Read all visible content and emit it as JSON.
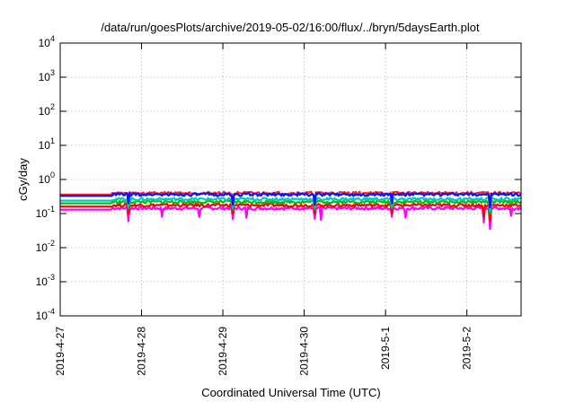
{
  "chart_data": {
    "type": "line",
    "title": "/data/run/goesPlots/archive/2019-05-02/16:00/flux/../bryn/5daysEarth.plot",
    "xlabel": "Coordinated Universal Time (UTC)",
    "ylabel": "cGy/day",
    "yscale": "log",
    "ylim": [
      0.0001,
      10000
    ],
    "xlim": [
      "2019-04-27",
      "2019-05-02T16:00"
    ],
    "grid": true,
    "x_ticks": [
      "2019-4-27",
      "2019-4-28",
      "2019-4-29",
      "2019-4-30",
      "2019-5-1",
      "2019-5-2"
    ],
    "y_ticks": [
      {
        "base": "10",
        "exp": "-4"
      },
      {
        "base": "10",
        "exp": "-3"
      },
      {
        "base": "10",
        "exp": "-2"
      },
      {
        "base": "10",
        "exp": "-1"
      },
      {
        "base": "10",
        "exp": "0"
      },
      {
        "base": "10",
        "exp": "1"
      },
      {
        "base": "10",
        "exp": "2"
      },
      {
        "base": "10",
        "exp": "3"
      },
      {
        "base": "10",
        "exp": "4"
      }
    ],
    "series": [
      {
        "color": "#ff00ff",
        "baseline": 0.13,
        "x_start": "2019-04-27",
        "flat_until": "2019-04-27T15:00",
        "dips": [
          [
            "2019-04-27T15:05",
            0.075
          ],
          [
            "2019-04-27T20:00",
            0.06
          ],
          [
            "2019-04-28T06:00",
            0.08
          ],
          [
            "2019-04-28T17:00",
            0.08
          ],
          [
            "2019-04-29T03:00",
            0.07
          ],
          [
            "2019-04-29T07:00",
            0.075
          ],
          [
            "2019-04-30T03:00",
            0.07
          ],
          [
            "2019-04-30T05:00",
            0.065
          ],
          [
            "2019-05-01T02:00",
            0.08
          ],
          [
            "2019-05-01T06:00",
            0.075
          ],
          [
            "2019-05-02T05:00",
            0.055
          ],
          [
            "2019-05-02T07:00",
            0.035
          ],
          [
            "2019-05-02T13:00",
            0.085
          ]
        ]
      },
      {
        "color": "#ff0000",
        "baseline": 0.16,
        "x_start": "2019-04-27",
        "flat_until": "2019-04-27T15:00",
        "dips": [
          [
            "2019-04-27T20:00",
            0.1
          ],
          [
            "2019-04-29T03:00",
            0.1
          ],
          [
            "2019-04-30T03:00",
            0.1
          ],
          [
            "2019-05-01T02:00",
            0.1
          ],
          [
            "2019-05-02T05:00",
            0.08
          ],
          [
            "2019-05-02T07:00",
            0.06
          ]
        ]
      },
      {
        "color": "#00c000",
        "baseline": 0.2,
        "x_start": "2019-04-27",
        "flat_until": "2019-04-27T15:00",
        "dips": [
          [
            "2019-04-27T20:00",
            0.14
          ],
          [
            "2019-04-29T03:00",
            0.13
          ],
          [
            "2019-04-30T03:00",
            0.13
          ],
          [
            "2019-05-01T02:00",
            0.14
          ],
          [
            "2019-05-02T07:00",
            0.1
          ]
        ]
      },
      {
        "color": "#00c8c8",
        "baseline": 0.24,
        "x_start": "2019-04-27",
        "flat_until": "2019-04-27T15:00",
        "dips": [
          [
            "2019-04-27T20:00",
            0.16
          ],
          [
            "2019-04-29T03:00",
            0.15
          ],
          [
            "2019-04-30T03:00",
            0.15
          ],
          [
            "2019-05-01T02:00",
            0.16
          ],
          [
            "2019-05-02T07:00",
            0.12
          ]
        ]
      },
      {
        "color": "#ff2020",
        "baseline": 0.36,
        "x_start": "2019-04-27",
        "flat_until": "2019-04-27T15:00",
        "dips": [
          [
            "2019-04-27T20:00",
            0.22
          ],
          [
            "2019-04-29T03:00",
            0.2
          ],
          [
            "2019-04-30T03:00",
            0.2
          ],
          [
            "2019-05-01T02:00",
            0.22
          ],
          [
            "2019-05-02T07:00",
            0.17
          ]
        ]
      },
      {
        "color": "#1010ff",
        "baseline": 0.33,
        "x_start": "2019-04-27",
        "flat_until": "2019-04-27T15:00",
        "dips": [
          [
            "2019-04-27T20:00",
            0.2
          ],
          [
            "2019-04-29T03:00",
            0.18
          ],
          [
            "2019-04-30T03:00",
            0.18
          ],
          [
            "2019-05-01T02:00",
            0.2
          ],
          [
            "2019-05-02T07:00",
            0.15
          ]
        ]
      }
    ]
  }
}
